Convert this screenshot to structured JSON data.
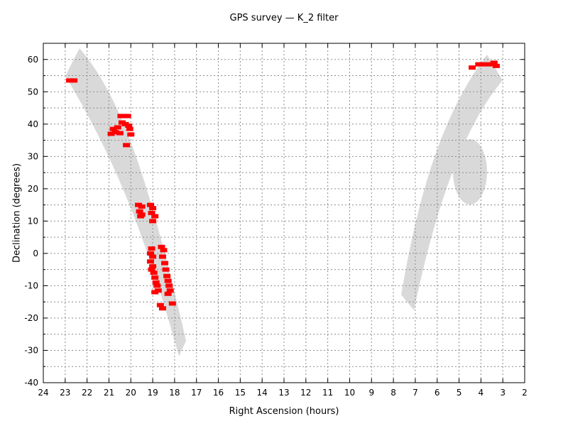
{
  "chart_data": {
    "type": "scatter",
    "title": "GPS survey — K_2 filter",
    "xlabel": "Right Ascension (hours)",
    "ylabel": "Declination (degrees)",
    "xlim": [
      24,
      2
    ],
    "ylim": [
      -40,
      65
    ],
    "x_ticks": [
      24,
      23,
      22,
      21,
      20,
      19,
      18,
      17,
      16,
      15,
      14,
      13,
      12,
      11,
      10,
      9,
      8,
      7,
      6,
      5,
      4,
      3,
      2
    ],
    "y_ticks": [
      -40,
      -30,
      -20,
      -10,
      0,
      10,
      20,
      30,
      40,
      50,
      60
    ],
    "grid": true,
    "colors": {
      "band": "#d9d9d9",
      "points": "#ff0000"
    },
    "series": [
      {
        "values": [
          [
            22.8,
            53.5
          ],
          [
            22.6,
            53.5
          ],
          [
            20.8,
            38.5
          ],
          [
            20.6,
            39
          ],
          [
            20.9,
            37
          ],
          [
            20.7,
            37.5
          ],
          [
            20.45,
            42.5
          ],
          [
            20.3,
            42.5
          ],
          [
            20.15,
            42.5
          ],
          [
            20.4,
            40.5
          ],
          [
            20.25,
            40
          ],
          [
            20.1,
            39.5
          ],
          [
            20.05,
            38.5
          ],
          [
            20.2,
            33.5
          ],
          [
            20.0,
            36.8
          ],
          [
            20.5,
            37.2
          ],
          [
            19.65,
            15
          ],
          [
            19.5,
            14.5
          ],
          [
            19.6,
            13
          ],
          [
            19.5,
            12
          ],
          [
            19.55,
            11.5
          ],
          [
            19.1,
            15
          ],
          [
            19.0,
            14
          ],
          [
            19.05,
            12.5
          ],
          [
            18.9,
            11.5
          ],
          [
            19.0,
            10
          ],
          [
            19.05,
            1.5
          ],
          [
            19.1,
            0
          ],
          [
            19.0,
            -1
          ],
          [
            19.1,
            -2.5
          ],
          [
            19.0,
            -4
          ],
          [
            19.05,
            -5
          ],
          [
            18.95,
            -6
          ],
          [
            18.9,
            -7.5
          ],
          [
            18.85,
            -9
          ],
          [
            18.8,
            -10
          ],
          [
            18.75,
            -11.5
          ],
          [
            18.9,
            -12
          ],
          [
            18.6,
            2
          ],
          [
            18.5,
            1
          ],
          [
            18.55,
            -1
          ],
          [
            18.45,
            -3
          ],
          [
            18.4,
            -5
          ],
          [
            18.35,
            -7
          ],
          [
            18.3,
            -8.5
          ],
          [
            18.25,
            -10
          ],
          [
            18.2,
            -11.5
          ],
          [
            18.3,
            -12.5
          ],
          [
            18.65,
            -16
          ],
          [
            18.55,
            -17
          ],
          [
            18.1,
            -15.5
          ],
          [
            4.4,
            57.5
          ],
          [
            4.1,
            58.5
          ],
          [
            3.9,
            58.5
          ],
          [
            3.6,
            58.5
          ],
          [
            3.4,
            59
          ],
          [
            3.3,
            58
          ]
        ]
      }
    ]
  }
}
